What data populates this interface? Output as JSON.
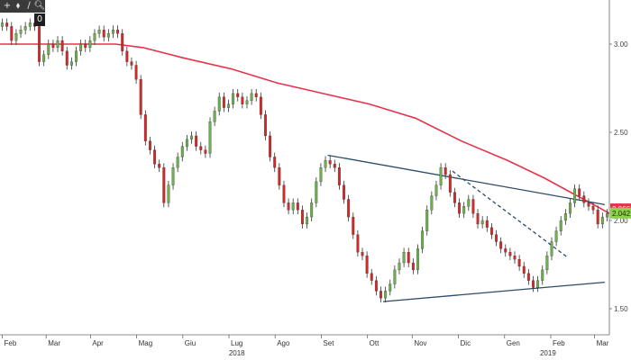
{
  "toolbar": {
    "buttons": [
      {
        "icon": "crosshair-icon",
        "glyph": "+"
      },
      {
        "icon": "pan-icon",
        "glyph": "⬧"
      },
      {
        "icon": "draw-line-icon",
        "glyph": "∕"
      },
      {
        "icon": "zoom-icon",
        "glyph": "🔍︎"
      }
    ],
    "zero_label": "0"
  },
  "colors": {
    "up_candle": "#6ab04c",
    "down_candle": "#d62828",
    "wick": "#333333",
    "moving_average": "#e8324a",
    "trendline": "#2c4a6a",
    "last_price_tag": "#8bd14a",
    "ma_tag": "#e8324a"
  },
  "chart_data": {
    "type": "candlestick",
    "title": "",
    "xlabel": "",
    "ylabel": "",
    "ylim": [
      1.42,
      3.2
    ],
    "yticks": [
      {
        "value": 3.0,
        "label": "3.00"
      },
      {
        "value": 2.5,
        "label": "2.50"
      },
      {
        "value": 2.0,
        "label": "2.00"
      },
      {
        "value": 1.5,
        "label": "1.50"
      }
    ],
    "xticks": [
      {
        "t": 0.5,
        "label": "Feb"
      },
      {
        "t": 10,
        "label": "Mar"
      },
      {
        "t": 19.6,
        "label": "Apr"
      },
      {
        "t": 29.6,
        "label": "Mag"
      },
      {
        "t": 39.6,
        "label": "Giu"
      },
      {
        "t": 49.6,
        "label": "Lug"
      },
      {
        "t": 59.6,
        "label": "Ago"
      },
      {
        "t": 69.6,
        "label": "Set"
      },
      {
        "t": 79.6,
        "label": "Ott"
      },
      {
        "t": 89.3,
        "label": "Nov"
      },
      {
        "t": 99.3,
        "label": "Dic"
      },
      {
        "t": 109.3,
        "label": "Gen"
      },
      {
        "t": 119.3,
        "label": "Feb"
      },
      {
        "t": 128.8,
        "label": "Mar"
      }
    ],
    "year_labels": [
      {
        "t": 51.3,
        "label": "2018"
      },
      {
        "t": 118.7,
        "label": "2019"
      }
    ],
    "x_range": [
      0,
      132
    ],
    "last_price": {
      "value": 2.042,
      "label": "2.042"
    },
    "ma_value": {
      "value": 2.066,
      "label": "2.066"
    },
    "grid": false,
    "series": [
      {
        "kind": "moving_average",
        "points": [
          [
            0,
            3.0
          ],
          [
            15,
            3.0
          ],
          [
            25,
            3.0
          ],
          [
            31,
            2.98
          ],
          [
            40,
            2.92
          ],
          [
            50,
            2.86
          ],
          [
            60,
            2.78
          ],
          [
            70,
            2.72
          ],
          [
            80,
            2.66
          ],
          [
            90,
            2.58
          ],
          [
            100,
            2.45
          ],
          [
            110,
            2.34
          ],
          [
            118,
            2.24
          ],
          [
            125,
            2.14
          ],
          [
            130,
            2.07
          ],
          [
            132,
            2.04
          ]
        ]
      },
      {
        "kind": "trendlines",
        "lines": [
          {
            "from": [
              71,
              2.37
            ],
            "to": [
              131,
              2.09
            ],
            "style": "solid"
          },
          {
            "from": [
              83,
              1.54
            ],
            "to": [
              131,
              1.65
            ],
            "style": "solid"
          },
          {
            "from": [
              98,
              2.28
            ],
            "to": [
              123,
              1.79
            ],
            "style": "dashed"
          }
        ]
      },
      {
        "kind": "price",
        "close": [
          3.12,
          3.1,
          3.02,
          3.06,
          3.08,
          3.1,
          3.12,
          3.1,
          2.9,
          2.94,
          3.0,
          2.98,
          3.02,
          2.96,
          2.88,
          2.9,
          2.96,
          3.0,
          2.98,
          3.02,
          3.06,
          3.08,
          3.04,
          3.06,
          3.08,
          3.06,
          2.96,
          2.9,
          2.88,
          2.8,
          2.6,
          2.45,
          2.4,
          2.32,
          2.3,
          2.1,
          2.2,
          2.3,
          2.36,
          2.42,
          2.46,
          2.48,
          2.42,
          2.4,
          2.38,
          2.56,
          2.62,
          2.7,
          2.64,
          2.66,
          2.72,
          2.7,
          2.66,
          2.68,
          2.72,
          2.7,
          2.6,
          2.48,
          2.36,
          2.3,
          2.2,
          2.1,
          2.06,
          2.1,
          2.06,
          1.98,
          2.02,
          2.1,
          2.22,
          2.3,
          2.34,
          2.32,
          2.3,
          2.2,
          2.12,
          2.02,
          1.92,
          1.82,
          1.8,
          1.7,
          1.66,
          1.6,
          1.56,
          1.6,
          1.64,
          1.72,
          1.76,
          1.82,
          1.76,
          1.72,
          1.84,
          1.94,
          2.06,
          2.14,
          2.2,
          2.3,
          2.26,
          2.16,
          2.1,
          2.04,
          2.08,
          2.12,
          2.04,
          1.98,
          2.0,
          1.96,
          1.92,
          1.88,
          1.84,
          1.82,
          1.8,
          1.78,
          1.74,
          1.7,
          1.66,
          1.62,
          1.66,
          1.72,
          1.8,
          1.88,
          1.94,
          2.0,
          2.04,
          2.1,
          2.18,
          2.14,
          2.1,
          2.08,
          2.06,
          1.98,
          2.02,
          2.04
        ]
      }
    ]
  }
}
